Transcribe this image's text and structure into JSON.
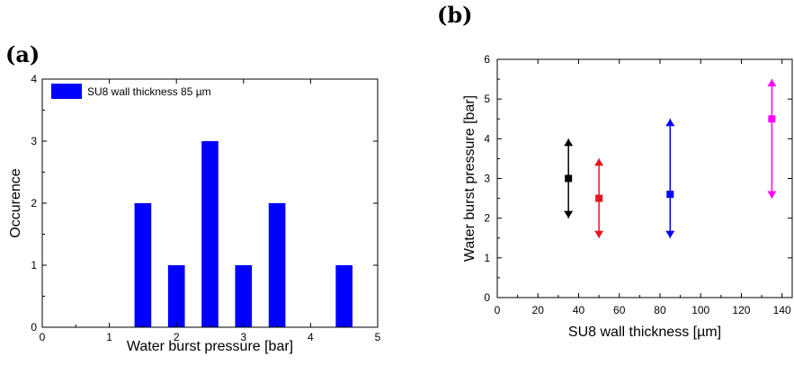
{
  "panels": {
    "a": "(a)",
    "b": "(b)"
  },
  "chart_data": [
    {
      "type": "bar",
      "panel": "(a)",
      "xlabel": "Water burst pressure [bar]",
      "ylabel": "Occurence",
      "xlim": [
        0,
        5
      ],
      "ylim": [
        0,
        4
      ],
      "xticks": [
        0,
        1,
        2,
        3,
        4,
        5
      ],
      "yticks": [
        0,
        1,
        2,
        3,
        4
      ],
      "bar_width": 0.25,
      "series": [
        {
          "name": "SU8 wall thickness 85 µm",
          "color": "#0000ff",
          "x": [
            1.5,
            2.0,
            2.5,
            3.0,
            3.5,
            4.5
          ],
          "values": [
            2,
            1,
            3,
            1,
            2,
            1
          ]
        }
      ],
      "legend": "top-left",
      "grid": false
    },
    {
      "type": "scatter",
      "panel": "(b)",
      "xlabel": "SU8 wall thickness [µm]",
      "ylabel": "Water burst pressure [bar]",
      "xlim": [
        0,
        145
      ],
      "ylim": [
        0,
        6
      ],
      "xticks": [
        0,
        20,
        40,
        60,
        80,
        100,
        120,
        140
      ],
      "yticks": [
        0,
        1,
        2,
        3,
        4,
        5,
        6
      ],
      "points": [
        {
          "x": 35,
          "y": 3.0,
          "ymin": 2.0,
          "ymax": 4.0,
          "color": "#000000"
        },
        {
          "x": 50,
          "y": 2.5,
          "ymin": 1.5,
          "ymax": 3.5,
          "color": "#e8141c"
        },
        {
          "x": 85,
          "y": 2.6,
          "ymin": 1.5,
          "ymax": 4.5,
          "color": "#0000ff"
        },
        {
          "x": 135,
          "y": 4.5,
          "ymin": 2.5,
          "ymax": 5.5,
          "color": "#ff00ff"
        }
      ],
      "grid": false
    }
  ]
}
